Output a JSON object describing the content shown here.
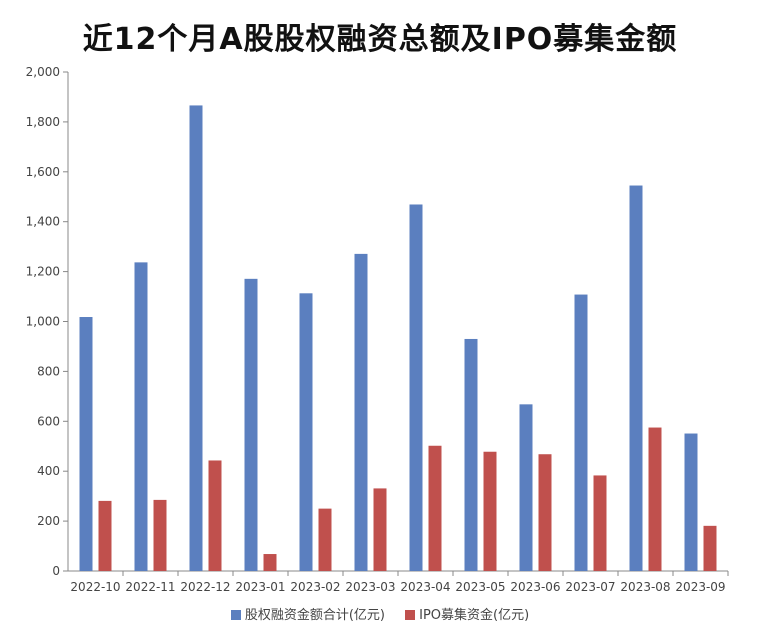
{
  "chart_data": {
    "type": "bar",
    "title": "近12个月A股股权融资总额及IPO募集金额",
    "categories": [
      "2022-10",
      "2022-11",
      "2022-12",
      "2023-01",
      "2023-02",
      "2023-03",
      "2023-04",
      "2023-05",
      "2023-06",
      "2023-07",
      "2023-08",
      "2023-09"
    ],
    "series": [
      {
        "name": "股权融资金额合计(亿元)",
        "color": "#5b7fbf",
        "values": [
          1018,
          1237,
          1866,
          1171,
          1113,
          1271,
          1469,
          930,
          668,
          1108,
          1545,
          551
        ]
      },
      {
        "name": "IPO募集资金(亿元)",
        "color": "#c0504d",
        "values": [
          281,
          285,
          443,
          68,
          250,
          331,
          502,
          478,
          468,
          383,
          575,
          181
        ]
      }
    ],
    "ylim": [
      0,
      2000
    ],
    "yticks": [
      "0",
      "200",
      "400",
      "600",
      "800",
      "1,000",
      "1,200",
      "1,400",
      "1,600",
      "1,800",
      "2,000"
    ],
    "xlabel": "",
    "ylabel": "",
    "grid": false,
    "legend": "bottom"
  }
}
